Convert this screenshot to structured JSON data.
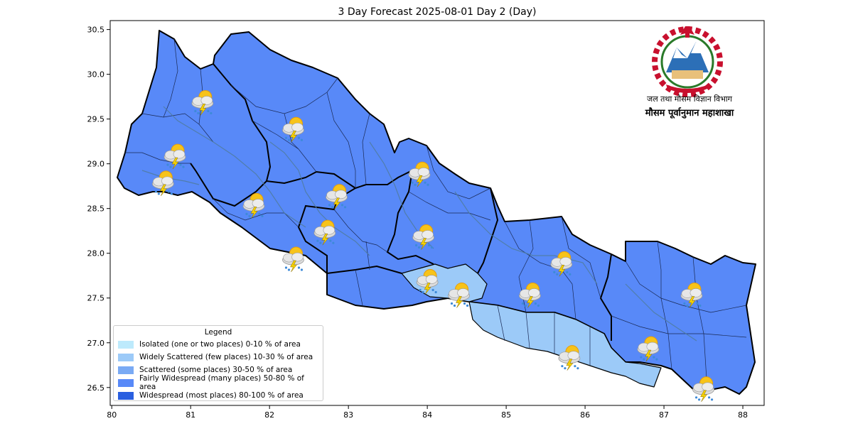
{
  "title": "3 Day Forecast 2025-08-01 Day 2 (Day)",
  "axes": {
    "x_ticks": [
      "80",
      "81",
      "82",
      "83",
      "84",
      "85",
      "86",
      "87",
      "88"
    ],
    "y_ticks": [
      "30.5",
      "30.0",
      "29.5",
      "29.0",
      "28.5",
      "28.0",
      "27.5",
      "27.0",
      "26.5"
    ],
    "xlim": [
      79.98,
      88.27
    ],
    "ylim": [
      26.3,
      30.6
    ]
  },
  "legend": {
    "title": "Legend",
    "items": [
      {
        "label": "Isolated (one or two places)  0-10 % of area",
        "color": "#bdeafc"
      },
      {
        "label": "Widely Scattered (few places) 10-30 % of area",
        "color": "#9ccaf8"
      },
      {
        "label": "Scattered (some places) 30-50  % of area",
        "color": "#7aaaf4"
      },
      {
        "label": "Fairly Widespread (many places) 50-80 % of area",
        "color": "#5889f8"
      },
      {
        "label": "Widespread (most places) 80-100 % of area",
        "color": "#2a5fe0"
      }
    ]
  },
  "department": {
    "line1": "जल तथा मौसम विज्ञान विभाग",
    "line2": "मौसम पूर्वानुमान महाशाखा",
    "emblem_icon": "nepal-emblem-icon"
  },
  "colors": {
    "fairly_widespread": "#5889f8",
    "widely_scattered": "#9ccaf8",
    "isolated": "#bdeafc",
    "boundary": "#000000",
    "river": "#4f7c9e"
  },
  "forecast_icons": [
    {
      "icon": "thunder-rain-icon",
      "lon": 81.15,
      "lat": 29.7
    },
    {
      "icon": "thunder-rain-icon",
      "lon": 82.3,
      "lat": 29.4
    },
    {
      "icon": "thunder-rain-icon",
      "lon": 80.8,
      "lat": 29.1
    },
    {
      "icon": "thunder-rain-icon",
      "lon": 80.65,
      "lat": 28.8
    },
    {
      "icon": "thunder-rain-icon",
      "lon": 81.8,
      "lat": 28.55
    },
    {
      "icon": "thunder-rain-icon",
      "lon": 82.85,
      "lat": 28.65
    },
    {
      "icon": "thunder-rain-icon",
      "lon": 83.9,
      "lat": 28.9
    },
    {
      "icon": "thunder-rain-icon",
      "lon": 82.7,
      "lat": 28.25
    },
    {
      "icon": "thunder-rain-icon",
      "lon": 83.95,
      "lat": 28.2
    },
    {
      "icon": "thunder-rain-icon",
      "lon": 82.3,
      "lat": 27.95
    },
    {
      "icon": "thunder-rain-icon",
      "lon": 84.0,
      "lat": 27.7
    },
    {
      "icon": "thunder-rain-icon",
      "lon": 84.4,
      "lat": 27.55
    },
    {
      "icon": "thunder-rain-icon",
      "lon": 85.3,
      "lat": 27.55
    },
    {
      "icon": "thunder-rain-icon",
      "lon": 85.7,
      "lat": 27.9
    },
    {
      "icon": "thunder-rain-icon",
      "lon": 87.35,
      "lat": 27.55
    },
    {
      "icon": "thunder-rain-icon",
      "lon": 85.8,
      "lat": 26.85
    },
    {
      "icon": "thunder-rain-icon",
      "lon": 86.8,
      "lat": 26.95
    },
    {
      "icon": "thunder-rain-icon",
      "lon": 87.5,
      "lat": 26.5
    }
  ]
}
